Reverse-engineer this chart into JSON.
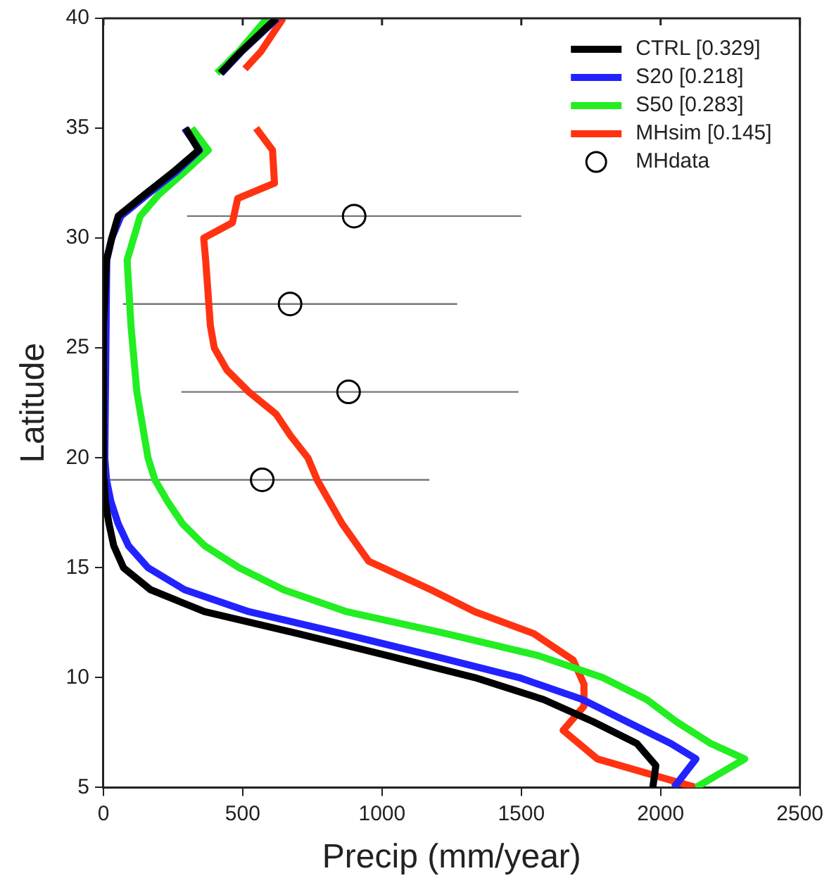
{
  "chart_data": {
    "type": "line",
    "xlabel": "Precip (mm/year)",
    "ylabel": "Latitude",
    "xlim": [
      0,
      2500
    ],
    "xticks": [
      0,
      500,
      1000,
      1500,
      2000,
      2500
    ],
    "ylim": [
      5,
      40
    ],
    "yticks": [
      5,
      10,
      15,
      20,
      25,
      30,
      35,
      40
    ],
    "grid": false,
    "legend": "top right",
    "line_style": "solid",
    "series": [
      {
        "name": "CTRL [0.329]",
        "color": "#000000",
        "x": [
          1972,
          1983,
          1915,
          1757,
          1580,
          1333,
          1020,
          698,
          363,
          169,
          72,
          37,
          20,
          7,
          2,
          0,
          11,
          30,
          53,
          150,
          250,
          342,
          295,
          null,
          420,
          495,
          620
        ],
        "values": [
          5,
          6,
          7,
          8,
          9,
          10,
          11,
          12,
          13,
          14,
          15,
          16,
          17,
          18,
          19,
          26,
          29,
          30,
          31,
          32,
          33,
          34,
          35,
          null,
          37.5,
          38.5,
          40
        ]
      },
      {
        "name": "S20 [0.218]",
        "color": "#2222ff",
        "x": [
          2048,
          2127,
          2037,
          1878,
          1720,
          1492,
          1180,
          857,
          522,
          291,
          160,
          90,
          53,
          27,
          11,
          5,
          12,
          30,
          63,
          160,
          260,
          345,
          291,
          null,
          423,
          497,
          624
        ],
        "values": [
          5,
          6.3,
          7,
          8,
          9,
          10,
          11,
          12,
          13,
          14,
          15,
          16,
          17,
          18,
          19,
          20,
          29,
          30,
          31,
          32,
          33,
          34,
          35,
          null,
          37.5,
          38.5,
          40
        ]
      },
      {
        "name": "S50 [0.283]",
        "color": "#22ee22",
        "x": [
          2127,
          2302,
          2180,
          2056,
          1950,
          1792,
          1561,
          1230,
          873,
          646,
          487,
          363,
          284,
          231,
          185,
          160,
          120,
          99,
          85,
          132,
          200,
          290,
          376,
          317,
          null,
          407,
          487,
          587
        ],
        "values": [
          5,
          6.3,
          7,
          8,
          9,
          10,
          11,
          12,
          13,
          14,
          15,
          16,
          17,
          18,
          19,
          20,
          23,
          26,
          29,
          31,
          32,
          33,
          34,
          35,
          null,
          37.5,
          38.5,
          40
        ]
      },
      {
        "name": "MHsim [0.145]",
        "color": "#ff3311",
        "x": [
          2127,
          1773,
          1650,
          1725,
          1725,
          1686,
          1545,
          1333,
          1175,
          952,
          857,
          767,
          734,
          672,
          619,
          522,
          443,
          398,
          384,
          367,
          360,
          463,
          482,
          614,
          607,
          548,
          null,
          508,
          566,
          645
        ],
        "values": [
          5,
          6.3,
          7.6,
          8.7,
          9.7,
          10.8,
          12,
          13,
          14,
          15.3,
          17,
          19,
          20,
          21,
          22,
          23,
          24,
          25,
          26,
          29,
          30,
          30.7,
          31.8,
          32.5,
          34,
          35,
          null,
          37.7,
          38.5,
          40
        ]
      },
      {
        "name": "MHdata",
        "type": "scatter",
        "marker": "circle",
        "color": "#000000",
        "x": [
          900,
          670,
          880,
          570
        ],
        "values": [
          31,
          27,
          23,
          19
        ],
        "xerrors": [
          [
            300,
            1500
          ],
          [
            70,
            1270
          ],
          [
            280,
            1490
          ],
          [
            0,
            1170
          ]
        ]
      }
    ]
  }
}
